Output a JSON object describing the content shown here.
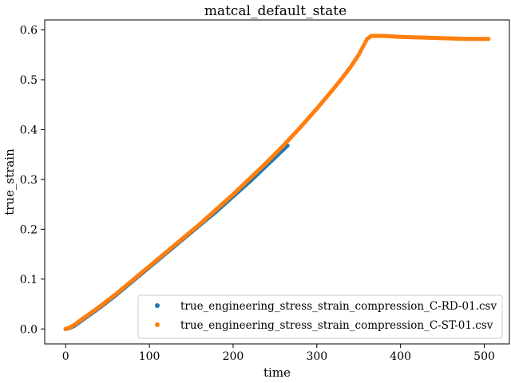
{
  "chart_data": {
    "type": "scatter",
    "title": "matcal_default_state",
    "xlabel": "time",
    "ylabel": "true_strain",
    "xlim": [
      -25,
      530
    ],
    "ylim": [
      -0.03,
      0.62
    ],
    "xticks": [
      0,
      100,
      200,
      300,
      400,
      500
    ],
    "yticks": [
      0.0,
      0.1,
      0.2,
      0.3,
      0.4,
      0.5,
      0.6
    ],
    "grid": false,
    "legend_position": "bottom-right",
    "series": [
      {
        "name": "true_engineering_stress_strain_compression_C-RD-01.csv",
        "color": "#1f77b4",
        "x": [
          0,
          5,
          10,
          20,
          30,
          40,
          50,
          60,
          70,
          80,
          90,
          100,
          110,
          120,
          130,
          140,
          150,
          160,
          170,
          180,
          190,
          200,
          210,
          220,
          230,
          240,
          250,
          260,
          265
        ],
        "y": [
          0.0,
          0.002,
          0.006,
          0.018,
          0.03,
          0.042,
          0.055,
          0.068,
          0.082,
          0.096,
          0.11,
          0.124,
          0.138,
          0.152,
          0.166,
          0.18,
          0.194,
          0.208,
          0.222,
          0.236,
          0.251,
          0.266,
          0.281,
          0.296,
          0.312,
          0.328,
          0.344,
          0.36,
          0.368
        ]
      },
      {
        "name": "true_engineering_stress_strain_compression_C-ST-01.csv",
        "color": "#ff7f0e",
        "x": [
          0,
          5,
          10,
          20,
          30,
          40,
          50,
          60,
          70,
          80,
          90,
          100,
          110,
          120,
          130,
          140,
          150,
          160,
          170,
          180,
          190,
          200,
          210,
          220,
          230,
          240,
          250,
          260,
          270,
          280,
          290,
          300,
          310,
          320,
          330,
          340,
          350,
          360,
          365,
          380,
          400,
          420,
          440,
          460,
          480,
          505
        ],
        "y": [
          0.0,
          0.003,
          0.008,
          0.02,
          0.032,
          0.044,
          0.057,
          0.07,
          0.084,
          0.098,
          0.112,
          0.126,
          0.14,
          0.154,
          0.168,
          0.182,
          0.196,
          0.21,
          0.225,
          0.24,
          0.255,
          0.27,
          0.286,
          0.302,
          0.318,
          0.334,
          0.351,
          0.368,
          0.386,
          0.404,
          0.423,
          0.442,
          0.462,
          0.482,
          0.503,
          0.525,
          0.55,
          0.582,
          0.588,
          0.588,
          0.586,
          0.585,
          0.584,
          0.583,
          0.582,
          0.582
        ]
      }
    ]
  }
}
